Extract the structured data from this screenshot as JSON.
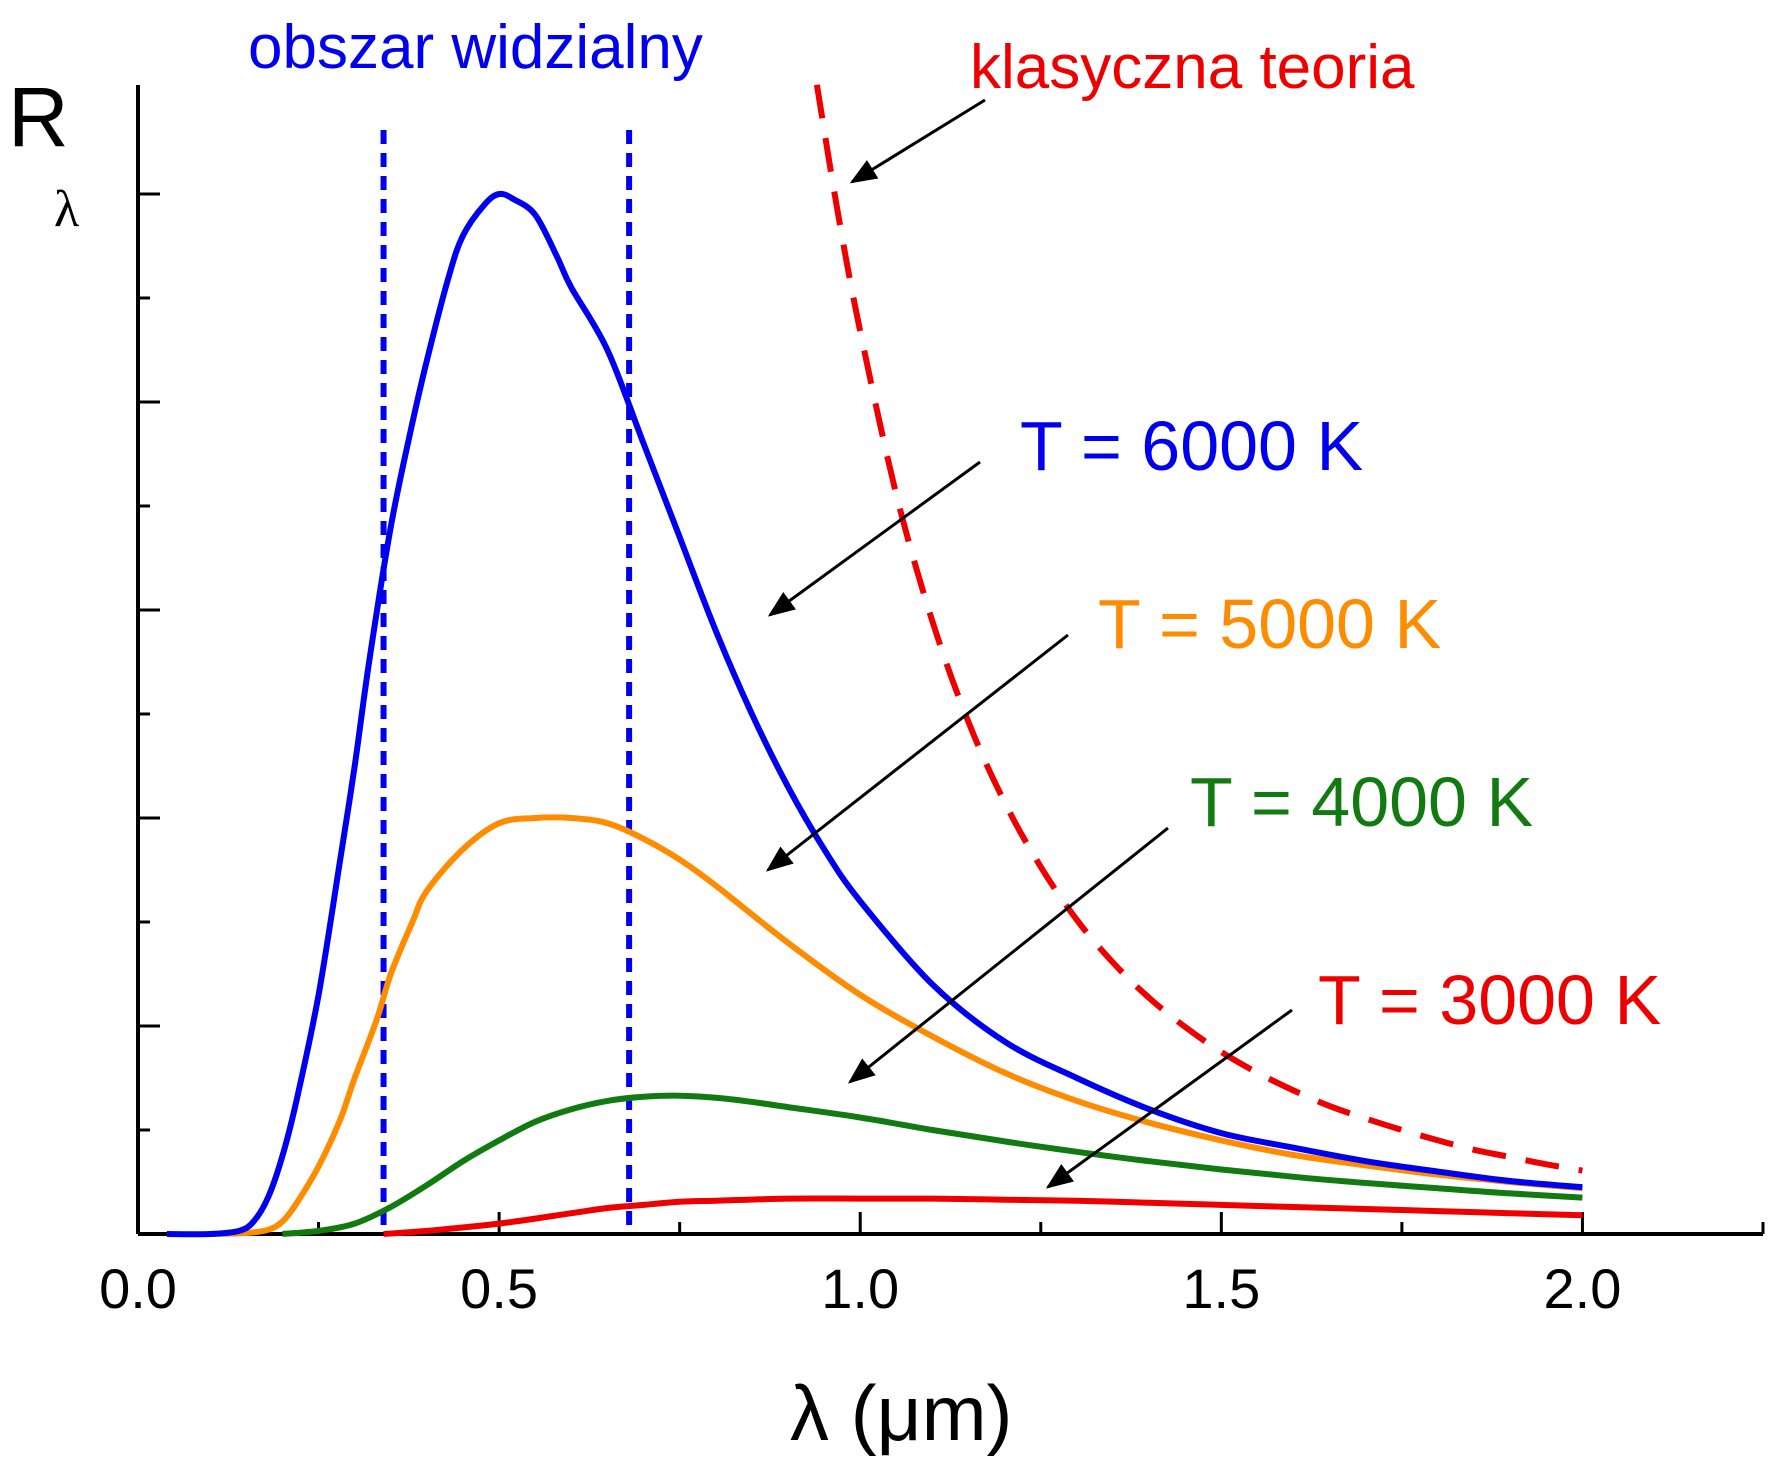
{
  "chart_data": {
    "type": "line",
    "xlabel": "λ (μm)",
    "ylabel_main": "R",
    "ylabel_sub": "λ",
    "xlim": [
      0.0,
      2.25
    ],
    "ylim": [
      0,
      1.0
    ],
    "x_ticks": [
      "0.0",
      "0.5",
      "1.0",
      "1.5",
      "2.0"
    ],
    "x_tick_values": [
      0.0,
      0.5,
      1.0,
      1.5,
      2.0
    ],
    "grid": false,
    "colors": {
      "t6000": "#0000ee",
      "t5000": "#ff8c00",
      "t4000": "#117a11",
      "t3000": "#ee0000",
      "classical": "#ee0000",
      "visible": "#0000ee",
      "arrows": "#000000"
    },
    "visible_region": {
      "label": "obszar widzialny",
      "x_min": 0.34,
      "x_max": 0.68
    },
    "classical_theory": {
      "label": "klasyczna teoria",
      "x": [
        0.94,
        0.97,
        1.0,
        1.05,
        1.1,
        1.15,
        1.2,
        1.25,
        1.3,
        1.35,
        1.4,
        1.45,
        1.5,
        1.55,
        1.6,
        1.65,
        1.7,
        1.75,
        1.8,
        1.85,
        1.9,
        1.95,
        2.0
      ],
      "values": [
        1.105,
        0.978,
        0.868,
        0.711,
        0.589,
        0.492,
        0.415,
        0.353,
        0.302,
        0.261,
        0.227,
        0.199,
        0.175,
        0.155,
        0.138,
        0.123,
        0.111,
        0.1,
        0.09,
        0.081,
        0.074,
        0.067,
        0.061
      ]
    },
    "series": [
      {
        "name": "T = 6000 K",
        "x": [
          0.04,
          0.1,
          0.14,
          0.16,
          0.18,
          0.2,
          0.22,
          0.25,
          0.28,
          0.3,
          0.32,
          0.35,
          0.38,
          0.4,
          0.43,
          0.45,
          0.48,
          0.5,
          0.52,
          0.55,
          0.58,
          0.6,
          0.65,
          0.7,
          0.75,
          0.8,
          0.85,
          0.9,
          0.95,
          1.0,
          1.1,
          1.2,
          1.3,
          1.4,
          1.5,
          1.6,
          1.7,
          1.8,
          1.9,
          2.0
        ],
        "values": [
          0.0,
          0.0,
          0.003,
          0.012,
          0.035,
          0.075,
          0.13,
          0.23,
          0.36,
          0.45,
          0.55,
          0.68,
          0.78,
          0.84,
          0.92,
          0.96,
          0.99,
          1.0,
          0.995,
          0.98,
          0.94,
          0.91,
          0.85,
          0.76,
          0.67,
          0.58,
          0.5,
          0.43,
          0.37,
          0.32,
          0.24,
          0.185,
          0.15,
          0.12,
          0.097,
          0.083,
          0.07,
          0.06,
          0.051,
          0.045
        ]
      },
      {
        "name": "T = 5000 K",
        "x": [
          0.1,
          0.15,
          0.18,
          0.2,
          0.22,
          0.25,
          0.28,
          0.3,
          0.33,
          0.35,
          0.38,
          0.4,
          0.45,
          0.5,
          0.55,
          0.6,
          0.65,
          0.7,
          0.75,
          0.8,
          0.9,
          1.0,
          1.1,
          1.2,
          1.3,
          1.4,
          1.5,
          1.6,
          1.7,
          1.8,
          1.9,
          2.0
        ],
        "values": [
          0.0,
          0.001,
          0.004,
          0.012,
          0.03,
          0.065,
          0.11,
          0.15,
          0.205,
          0.25,
          0.3,
          0.33,
          0.37,
          0.395,
          0.4,
          0.4,
          0.395,
          0.38,
          0.36,
          0.335,
          0.28,
          0.23,
          0.19,
          0.155,
          0.128,
          0.107,
          0.09,
          0.076,
          0.066,
          0.057,
          0.05,
          0.044
        ]
      },
      {
        "name": "T = 4000 K",
        "x": [
          0.2,
          0.25,
          0.3,
          0.35,
          0.4,
          0.45,
          0.5,
          0.55,
          0.6,
          0.65,
          0.7,
          0.75,
          0.8,
          0.85,
          0.9,
          1.0,
          1.1,
          1.2,
          1.3,
          1.4,
          1.5,
          1.6,
          1.7,
          1.8,
          1.9,
          2.0
        ],
        "values": [
          0.0,
          0.003,
          0.01,
          0.026,
          0.047,
          0.07,
          0.09,
          0.108,
          0.12,
          0.128,
          0.132,
          0.133,
          0.131,
          0.127,
          0.122,
          0.112,
          0.1,
          0.089,
          0.079,
          0.07,
          0.062,
          0.055,
          0.049,
          0.044,
          0.039,
          0.035
        ]
      },
      {
        "name": "T = 3000 K",
        "x": [
          0.34,
          0.4,
          0.5,
          0.6,
          0.65,
          0.7,
          0.75,
          0.8,
          0.9,
          1.0,
          1.1,
          1.2,
          1.3,
          1.4,
          1.5,
          1.6,
          1.7,
          1.8,
          1.9,
          2.0
        ],
        "values": [
          0.0,
          0.003,
          0.01,
          0.02,
          0.025,
          0.028,
          0.031,
          0.032,
          0.034,
          0.034,
          0.034,
          0.033,
          0.032,
          0.03,
          0.028,
          0.026,
          0.024,
          0.022,
          0.02,
          0.018
        ]
      }
    ],
    "annotations": {
      "t6000": "T = 6000 K",
      "t5000": "T = 5000 K",
      "t4000": "T = 4000 K",
      "t3000": "T = 3000 K"
    }
  }
}
